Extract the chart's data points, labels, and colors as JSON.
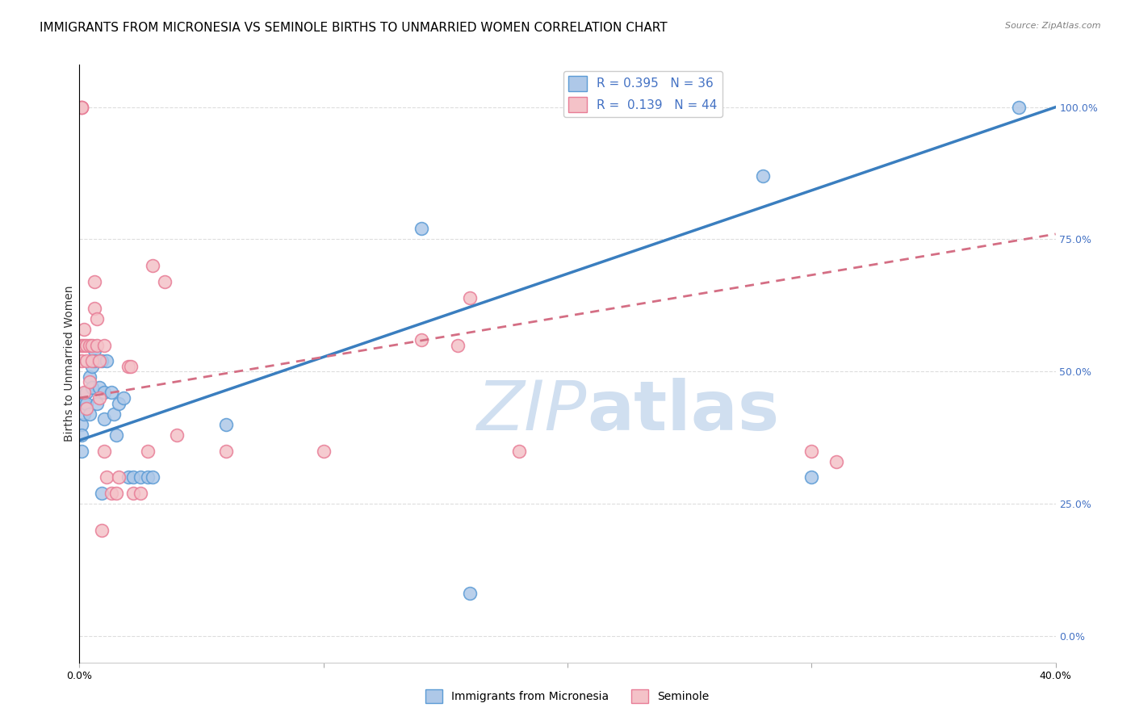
{
  "title": "IMMIGRANTS FROM MICRONESIA VS SEMINOLE BIRTHS TO UNMARRIED WOMEN CORRELATION CHART",
  "source": "Source: ZipAtlas.com",
  "ylabel_left": "Births to Unmarried Women",
  "legend1_label": "Immigrants from Micronesia",
  "legend2_label": "Seminole",
  "r1": 0.395,
  "n1": 36,
  "r2": 0.139,
  "n2": 44,
  "blue_color": "#aec8e8",
  "blue_edge_color": "#5b9bd5",
  "pink_color": "#f4c2c8",
  "pink_edge_color": "#e87c96",
  "blue_line_color": "#3a7ebf",
  "pink_line_color": "#d46e84",
  "right_axis_color": "#4472c4",
  "watermark_color": "#d0dff0",
  "x_min": 0.0,
  "x_max": 0.4,
  "y_min": -0.05,
  "y_max": 1.08,
  "yticks": [
    0.0,
    0.25,
    0.5,
    0.75,
    1.0
  ],
  "ytick_labels": [
    "0.0%",
    "25.0%",
    "50.0%",
    "75.0%",
    "100.0%"
  ],
  "blue_trend_x0": 0.0,
  "blue_trend_y0": 0.37,
  "blue_trend_x1": 0.4,
  "blue_trend_y1": 1.0,
  "pink_trend_x0": 0.0,
  "pink_trend_y0": 0.45,
  "pink_trend_x1": 0.4,
  "pink_trend_y1": 0.76,
  "blue_points_x": [
    0.001,
    0.001,
    0.001,
    0.002,
    0.002,
    0.003,
    0.003,
    0.004,
    0.004,
    0.005,
    0.005,
    0.006,
    0.006,
    0.007,
    0.008,
    0.009,
    0.009,
    0.01,
    0.01,
    0.011,
    0.013,
    0.014,
    0.015,
    0.016,
    0.018,
    0.02,
    0.022,
    0.025,
    0.028,
    0.03,
    0.06,
    0.14,
    0.16,
    0.28,
    0.3,
    0.385
  ],
  "blue_points_y": [
    0.4,
    0.38,
    0.35,
    0.44,
    0.42,
    0.46,
    0.44,
    0.49,
    0.42,
    0.51,
    0.47,
    0.54,
    0.52,
    0.44,
    0.47,
    0.52,
    0.27,
    0.46,
    0.41,
    0.52,
    0.46,
    0.42,
    0.38,
    0.44,
    0.45,
    0.3,
    0.3,
    0.3,
    0.3,
    0.3,
    0.4,
    0.77,
    0.08,
    0.87,
    0.3,
    1.0
  ],
  "pink_points_x": [
    0.001,
    0.001,
    0.001,
    0.001,
    0.001,
    0.002,
    0.002,
    0.002,
    0.003,
    0.003,
    0.003,
    0.004,
    0.004,
    0.005,
    0.005,
    0.006,
    0.006,
    0.007,
    0.007,
    0.008,
    0.008,
    0.009,
    0.01,
    0.01,
    0.011,
    0.013,
    0.015,
    0.016,
    0.02,
    0.021,
    0.022,
    0.025,
    0.028,
    0.03,
    0.035,
    0.04,
    0.06,
    0.1,
    0.14,
    0.155,
    0.16,
    0.18,
    0.3,
    0.31
  ],
  "pink_points_y": [
    1.0,
    1.0,
    1.0,
    0.55,
    0.52,
    0.58,
    0.55,
    0.46,
    0.55,
    0.52,
    0.43,
    0.55,
    0.48,
    0.55,
    0.52,
    0.67,
    0.62,
    0.6,
    0.55,
    0.52,
    0.45,
    0.2,
    0.55,
    0.35,
    0.3,
    0.27,
    0.27,
    0.3,
    0.51,
    0.51,
    0.27,
    0.27,
    0.35,
    0.7,
    0.67,
    0.38,
    0.35,
    0.35,
    0.56,
    0.55,
    0.64,
    0.35,
    0.35,
    0.33
  ],
  "title_fontsize": 11,
  "axis_label_fontsize": 10,
  "tick_fontsize": 9,
  "legend_fontsize": 11
}
